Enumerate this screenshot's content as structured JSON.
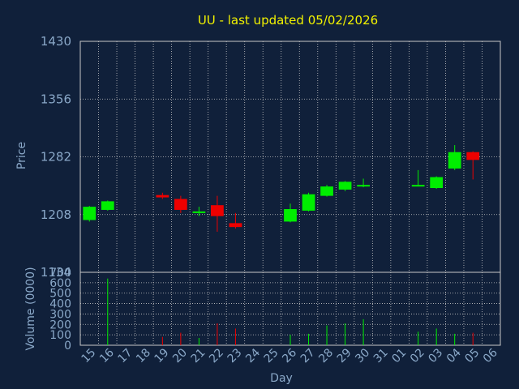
{
  "title": "UU - last updated 05/02/2026",
  "colors": {
    "background": "#10203a",
    "grid": "#c8c8c8",
    "up": "#00ee00",
    "down": "#ee0000",
    "title": "#f2f200",
    "axis_text": "#8aa8c8"
  },
  "chart_data": [
    {
      "type": "candlestick",
      "ylabel": "Price",
      "ylim": [
        1134,
        1430
      ],
      "yticks": [
        "1430",
        "1356",
        "1282",
        "1208",
        "1134"
      ],
      "grid": true,
      "candles": [
        {
          "day": "15",
          "open": 1201,
          "high": 1219,
          "low": 1199,
          "close": 1218
        },
        {
          "day": "16",
          "open": 1214,
          "high": 1226,
          "low": 1213,
          "close": 1225
        },
        {
          "day": "19",
          "open": 1233,
          "high": 1236,
          "low": 1228,
          "close": 1230
        },
        {
          "day": "20",
          "open": 1228,
          "high": 1232,
          "low": 1210,
          "close": 1214
        },
        {
          "day": "21",
          "open": 1210,
          "high": 1218,
          "low": 1206,
          "close": 1212
        },
        {
          "day": "22",
          "open": 1220,
          "high": 1232,
          "low": 1186,
          "close": 1206
        },
        {
          "day": "23",
          "open": 1197,
          "high": 1210,
          "low": 1190,
          "close": 1192
        },
        {
          "day": "26",
          "open": 1199,
          "high": 1222,
          "low": 1198,
          "close": 1215
        },
        {
          "day": "27",
          "open": 1213,
          "high": 1236,
          "low": 1212,
          "close": 1234
        },
        {
          "day": "28",
          "open": 1232,
          "high": 1246,
          "low": 1231,
          "close": 1244
        },
        {
          "day": "29",
          "open": 1240,
          "high": 1251,
          "low": 1238,
          "close": 1250
        },
        {
          "day": "30",
          "open": 1244,
          "high": 1254,
          "low": 1243,
          "close": 1246
        },
        {
          "day": "02",
          "open": 1244,
          "high": 1265,
          "low": 1244,
          "close": 1246
        },
        {
          "day": "03",
          "open": 1242,
          "high": 1257,
          "low": 1241,
          "close": 1256
        },
        {
          "day": "04",
          "open": 1267,
          "high": 1297,
          "low": 1265,
          "close": 1288
        },
        {
          "day": "05",
          "open": 1288,
          "high": 1289,
          "low": 1253,
          "close": 1278
        }
      ]
    },
    {
      "type": "bar",
      "ylabel": "Volume (0000)",
      "ylim": [
        0,
        700
      ],
      "yticks": [
        "700",
        "600",
        "500",
        "400",
        "300",
        "200",
        "100",
        "0"
      ],
      "xlabel": "Day",
      "categories": [
        "15",
        "16",
        "17",
        "18",
        "19",
        "20",
        "21",
        "22",
        "23",
        "24",
        "25",
        "26",
        "27",
        "28",
        "29",
        "30",
        "31",
        "01",
        "02",
        "03",
        "04",
        "05",
        "06"
      ],
      "values": [
        0,
        640,
        0,
        0,
        80,
        120,
        70,
        210,
        160,
        0,
        0,
        100,
        110,
        190,
        210,
        250,
        0,
        0,
        130,
        160,
        110,
        120,
        0
      ],
      "direction": [
        "",
        "up",
        "",
        "",
        "down",
        "down",
        "up",
        "down",
        "down",
        "",
        "",
        "up",
        "up",
        "up",
        "up",
        "up",
        "",
        "",
        "up",
        "up",
        "up",
        "down",
        ""
      ]
    }
  ]
}
